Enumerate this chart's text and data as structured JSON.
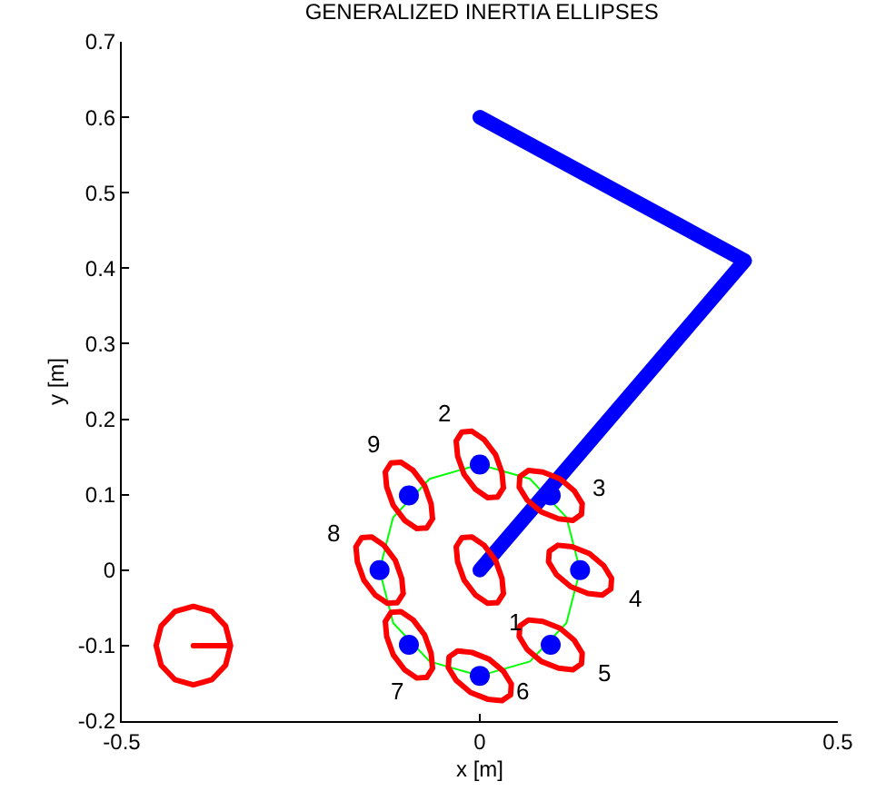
{
  "chart_data": {
    "type": "line",
    "title": "GENERALIZED INERTIA ELLIPSES",
    "xlabel": "x [m]",
    "ylabel": "y [m]",
    "xlim": [
      -0.5,
      0.5
    ],
    "xticks": [
      -0.5,
      0,
      0.5
    ],
    "ylim": [
      -0.2,
      0.7
    ],
    "yticks": [
      -0.2,
      -0.1,
      0,
      0.1,
      0.2,
      0.3,
      0.4,
      0.5,
      0.6,
      0.7
    ],
    "grid": false,
    "marker": "none",
    "line_style": "solid",
    "series": [
      {
        "color": "#00ff00",
        "x": [
          0.14,
          0.121,
          0.07,
          0,
          -0.07,
          -0.121,
          -0.14,
          -0.121,
          -0.07,
          0,
          0.07,
          0.121
        ],
        "values": [
          0,
          0.07,
          0.121,
          0.14,
          0.121,
          0.07,
          0,
          -0.07,
          -0.121,
          -0.14,
          -0.121,
          -0.07
        ]
      },
      {
        "color": "#0000ff",
        "x": [
          0,
          0.37,
          0
        ],
        "values": [
          0,
          0.41,
          0.6
        ]
      },
      {
        "type": "scatter",
        "color": "#0000ff",
        "marker": "circle",
        "x": [
          0,
          0.099,
          0.14,
          0.099,
          0,
          -0.099,
          -0.14,
          -0.099
        ],
        "values": [
          0.14,
          0.099,
          0,
          -0.099,
          -0.14,
          -0.099,
          0,
          0.099
        ]
      },
      {
        "color": "#ff0000",
        "x": [
          0.025,
          0.033,
          0.031,
          0.022,
          0.006,
          -0.011,
          -0.025,
          -0.033,
          -0.031,
          -0.022,
          -0.006,
          0.011
        ],
        "values": [
          -0.043,
          -0.031,
          -0.011,
          0.013,
          0.033,
          0.044,
          0.043,
          0.031,
          0.011,
          -0.013,
          -0.033,
          -0.044
        ]
      },
      {
        "color": "#ff0000",
        "x": [
          0.025,
          0.033,
          0.031,
          0.022,
          0.006,
          -0.011,
          -0.025,
          -0.033,
          -0.031,
          -0.022,
          -0.006,
          0.011
        ],
        "values": [
          0.097,
          0.109,
          0.129,
          0.153,
          0.173,
          0.184,
          0.183,
          0.171,
          0.151,
          0.127,
          0.107,
          0.096
        ]
      },
      {
        "color": "#ff0000",
        "x": [
          0.142,
          0.143,
          0.132,
          0.112,
          0.088,
          0.068,
          0.056,
          0.055,
          0.066,
          0.086,
          0.11,
          0.13
        ],
        "values": [
          0.074,
          0.088,
          0.105,
          0.121,
          0.13,
          0.132,
          0.124,
          0.11,
          0.093,
          0.077,
          0.068,
          0.066
        ]
      },
      {
        "color": "#ff0000",
        "x": [
          0.183,
          0.184,
          0.173,
          0.153,
          0.129,
          0.109,
          0.097,
          0.096,
          0.107,
          0.127,
          0.151,
          0.171
        ],
        "values": [
          -0.025,
          -0.011,
          0.006,
          0.022,
          0.031,
          0.033,
          0.025,
          0.011,
          -0.006,
          -0.022,
          -0.031,
          -0.033
        ]
      },
      {
        "color": "#ff0000",
        "x": [
          0.142,
          0.143,
          0.132,
          0.112,
          0.088,
          0.068,
          0.056,
          0.055,
          0.066,
          0.086,
          0.11,
          0.13
        ],
        "values": [
          -0.124,
          -0.11,
          -0.093,
          -0.077,
          -0.068,
          -0.066,
          -0.074,
          -0.088,
          -0.105,
          -0.121,
          -0.13,
          -0.132
        ]
      },
      {
        "color": "#ff0000",
        "x": [
          0.043,
          0.044,
          0.033,
          0.013,
          -0.011,
          -0.031,
          -0.043,
          -0.044,
          -0.033,
          -0.013,
          0.011,
          0.031
        ],
        "values": [
          -0.165,
          -0.151,
          -0.134,
          -0.118,
          -0.109,
          -0.107,
          -0.115,
          -0.129,
          -0.146,
          -0.162,
          -0.171,
          -0.173
        ]
      },
      {
        "color": "#ff0000",
        "x": [
          -0.074,
          -0.066,
          -0.068,
          -0.077,
          -0.093,
          -0.11,
          -0.124,
          -0.132,
          -0.13,
          -0.121,
          -0.105,
          -0.088
        ],
        "values": [
          -0.142,
          -0.13,
          -0.11,
          -0.086,
          -0.066,
          -0.055,
          -0.056,
          -0.068,
          -0.088,
          -0.112,
          -0.132,
          -0.143
        ]
      },
      {
        "color": "#ff0000",
        "x": [
          -0.115,
          -0.107,
          -0.109,
          -0.118,
          -0.134,
          -0.151,
          -0.165,
          -0.173,
          -0.171,
          -0.162,
          -0.146,
          -0.129
        ],
        "values": [
          -0.043,
          -0.031,
          -0.011,
          0.013,
          0.033,
          0.044,
          0.043,
          0.031,
          0.011,
          -0.013,
          -0.033,
          -0.044
        ]
      },
      {
        "color": "#ff0000",
        "x": [
          -0.074,
          -0.066,
          -0.068,
          -0.077,
          -0.093,
          -0.11,
          -0.124,
          -0.132,
          -0.13,
          -0.121,
          -0.105,
          -0.088
        ],
        "values": [
          0.056,
          0.068,
          0.088,
          0.112,
          0.132,
          0.143,
          0.142,
          0.13,
          0.11,
          0.086,
          0.066,
          0.055
        ]
      },
      {
        "color": "#ff0000",
        "x": [
          -0.4,
          -0.348,
          -0.355,
          -0.374,
          -0.4,
          -0.426,
          -0.445,
          -0.452,
          -0.445,
          -0.426,
          -0.4,
          -0.374,
          -0.355
        ],
        "values": [
          -0.1,
          -0.1,
          -0.074,
          -0.055,
          -0.048,
          -0.055,
          -0.074,
          -0.1,
          -0.126,
          -0.145,
          -0.152,
          -0.145,
          -0.126
        ]
      }
    ],
    "annotations": [
      "1",
      "2",
      "3",
      "4",
      "5",
      "6",
      "7",
      "8",
      "9"
    ]
  }
}
